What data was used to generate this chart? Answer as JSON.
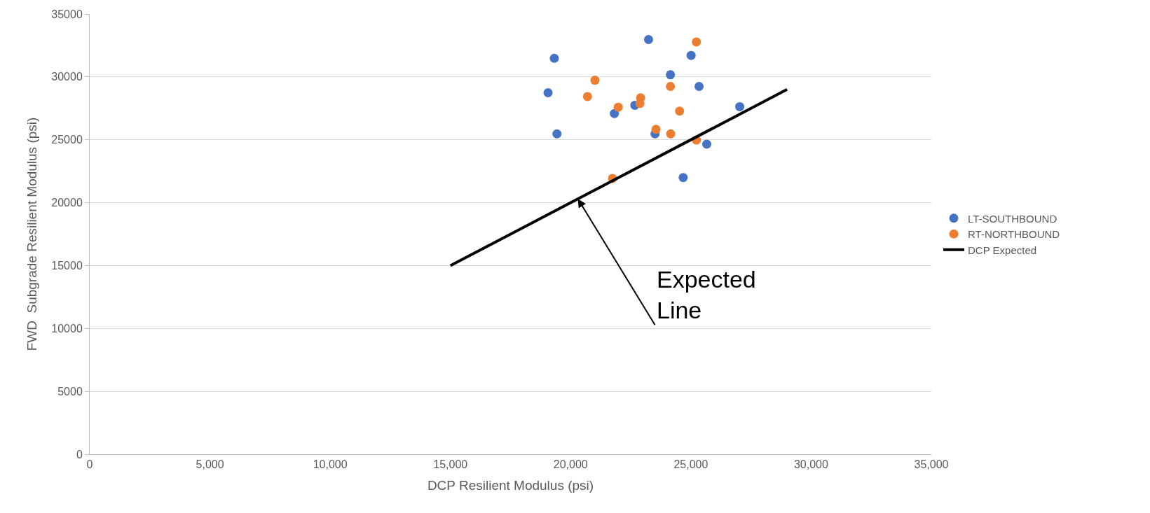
{
  "chart_data": {
    "type": "scatter",
    "xlabel": "DCP Resilient Modulus (psi)",
    "ylabel": "FWD  Subgrade Resilient Modulus (psi)",
    "xlim": [
      0,
      35000
    ],
    "ylim": [
      0,
      35000
    ],
    "xticks": [
      {
        "value": 0,
        "label": "0"
      },
      {
        "value": 5000,
        "label": "5,000"
      },
      {
        "value": 10000,
        "label": "10,000"
      },
      {
        "value": 15000,
        "label": "15,000"
      },
      {
        "value": 20000,
        "label": "20,000"
      },
      {
        "value": 25000,
        "label": "25,000"
      },
      {
        "value": 30000,
        "label": "30,000"
      },
      {
        "value": 35000,
        "label": "35,000"
      }
    ],
    "yticks": [
      0,
      5000,
      10000,
      15000,
      20000,
      25000,
      30000,
      35000
    ],
    "grid": "y",
    "legend": "right",
    "annotations": [
      {
        "text": "Expected\nLine",
        "x": 20300,
        "y": 20300
      }
    ],
    "series": [
      {
        "name": "LT-SOUTHBOUND",
        "color": "#4472c4",
        "marker": "circle",
        "x": [
          19320,
          19060,
          19430,
          21820,
          22670,
          23240,
          23510,
          24150,
          25010,
          25340,
          25660,
          27030,
          24680
        ],
        "values": [
          31480,
          28740,
          25470,
          27090,
          27740,
          32970,
          25470,
          30170,
          31710,
          29240,
          24650,
          27630,
          22000
        ]
      },
      {
        "name": "RT-NORTHBOUND",
        "color": "#ed7d31",
        "marker": "circle",
        "x": [
          25230,
          21010,
          20700,
          21980,
          22910,
          22880,
          24150,
          24530,
          23550,
          24160,
          25230,
          21740
        ],
        "values": [
          32780,
          29740,
          28440,
          27590,
          28330,
          27890,
          29240,
          27280,
          25830,
          25470,
          24980,
          21930
        ]
      },
      {
        "name": "DCP Expected",
        "type": "line",
        "color": "#000000",
        "x": [
          15000,
          29000
        ],
        "values": [
          15000,
          29000
        ]
      }
    ]
  }
}
